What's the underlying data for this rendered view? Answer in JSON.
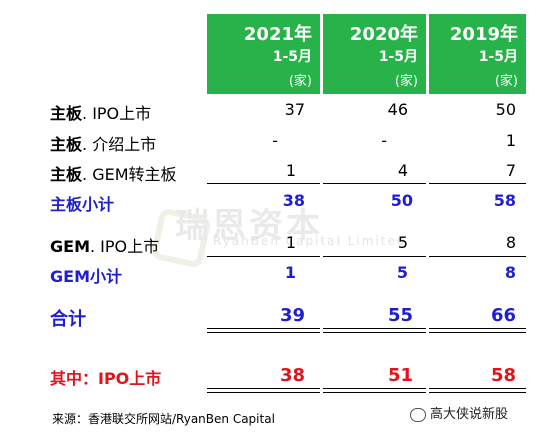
{
  "columns": [
    {
      "year": "2021年",
      "period": "1-5月",
      "unit": "(家)"
    },
    {
      "year": "2020年",
      "period": "1-5月",
      "unit": "(家)"
    },
    {
      "year": "2019年",
      "period": "1-5月",
      "unit": "(家)"
    }
  ],
  "rows": [
    {
      "label_bold": "主板",
      "label_rest": ". IPO上市",
      "values": [
        "37",
        "46",
        "50"
      ]
    },
    {
      "label_bold": "主板",
      "label_rest": ". 介绍上市",
      "values": [
        "-",
        "-",
        "1"
      ]
    },
    {
      "label_bold": "主板",
      "label_rest": ". GEM转主板",
      "values": [
        "1",
        "4",
        "7"
      ]
    },
    {
      "label": "主板小计",
      "values": [
        "38",
        "50",
        "58"
      ]
    },
    {
      "label_bold": "GEM",
      "label_rest": ". IPO上市",
      "values": [
        "1",
        "5",
        "8"
      ]
    },
    {
      "label": "GEM小计",
      "values": [
        "1",
        "5",
        "8"
      ]
    },
    {
      "label": "合计",
      "values": [
        "39",
        "55",
        "66"
      ]
    },
    {
      "label": "其中：IPO上市",
      "values": [
        "38",
        "51",
        "58"
      ]
    }
  ],
  "watermark": {
    "cn": "瑞恩资本",
    "en": "RyanBen Capital Limited"
  },
  "source": "来源：香港联交所网站/RyanBen Capital",
  "brand": "高大侠说新股",
  "colors": {
    "header_green": "#27b24a",
    "subtotal_blue": "#1f1fd0",
    "highlight_red": "#e0141c"
  }
}
